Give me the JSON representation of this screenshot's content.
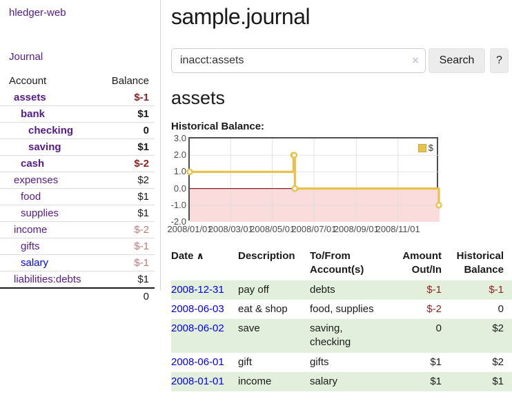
{
  "colors": {
    "purple": "#551a8b",
    "blue": "#0000ee",
    "neg_strong": "#8e1f1f",
    "neg_soft": "#bd7b79",
    "row_green": "#e2efdb",
    "gold": "#e8c24a",
    "chart_negative_bg": "#fbdcdc",
    "chart_zero_line": "#8b1d1d"
  },
  "icons": {
    "sort_ascending": "∧",
    "clear": "×"
  },
  "sidebar": {
    "app_title": "hledger-web",
    "journal_label": "Journal",
    "accounts_table": {
      "account_header": "Account",
      "balance_header": "Balance",
      "rows": [
        {
          "name": "assets",
          "balance": "$-1",
          "depth": 0,
          "bold": true,
          "negative": true
        },
        {
          "name": "bank",
          "balance": "$1",
          "depth": 1,
          "bold": true,
          "negative": false
        },
        {
          "name": "checking",
          "balance": "0",
          "depth": 2,
          "bold": true,
          "negative": false
        },
        {
          "name": "saving",
          "balance": "$1",
          "depth": 2,
          "bold": true,
          "negative": false
        },
        {
          "name": "cash",
          "balance": "$-2",
          "depth": 1,
          "bold": true,
          "negative": true
        },
        {
          "name": "expenses",
          "balance": "$2",
          "depth": 0,
          "bold": false,
          "negative": false
        },
        {
          "name": "food",
          "balance": "$1",
          "depth": 1,
          "bold": false,
          "negative": false
        },
        {
          "name": "supplies",
          "balance": "$1",
          "depth": 1,
          "bold": false,
          "negative": false
        },
        {
          "name": "income",
          "balance": "$-2",
          "depth": 0,
          "bold": false,
          "negative": true
        },
        {
          "name": "gifts",
          "balance": "$-1",
          "depth": 1,
          "bold": false,
          "negative": true
        },
        {
          "name": "salary",
          "balance": "$-1",
          "depth": 1,
          "bold": false,
          "negative": true,
          "unvisited": true
        },
        {
          "name": "liabilities:debts",
          "balance": "$1",
          "depth": 0,
          "bold": false,
          "negative": false
        }
      ],
      "total": "0"
    }
  },
  "header": {
    "title": "sample.journal"
  },
  "search": {
    "value": "inacct:assets",
    "button_label": "Search",
    "help_label": "?"
  },
  "account_page": {
    "heading": "assets",
    "chart_label": "Historical Balance:"
  },
  "chart_data": {
    "type": "line",
    "step": true,
    "series": [
      {
        "name": "$",
        "points": [
          [
            "2008-01-01",
            1
          ],
          [
            "2008-06-01",
            2
          ],
          [
            "2008-06-02",
            2
          ],
          [
            "2008-06-03",
            0
          ],
          [
            "2008-12-31",
            -1
          ]
        ]
      }
    ],
    "x_start": "2008-01-01",
    "x_range_days": 366,
    "xticks": [
      {
        "label": "2008/01/01",
        "day": 0
      },
      {
        "label": "2008/03/01",
        "day": 60
      },
      {
        "label": "2008/05/01",
        "day": 121
      },
      {
        "label": "2008/07/01",
        "day": 182
      },
      {
        "label": "2008/09/01",
        "day": 244
      },
      {
        "label": "2008/11/01",
        "day": 305
      }
    ],
    "yticks": [
      "3.0",
      "2.0",
      "1.0",
      "0.0",
      "-1.0",
      "-2.0"
    ],
    "ylim": [
      -2,
      3
    ],
    "grid": true,
    "legend": {
      "label": "$",
      "position": "top-right"
    },
    "negative_region_shaded": true
  },
  "register_table": {
    "headers": {
      "date": "Date",
      "description": "Description",
      "accounts": "To/From Account(s)",
      "amount": "Amount Out/In",
      "balance": "Historical Balance"
    },
    "rows": [
      {
        "date": "2008-12-31",
        "description": "pay off",
        "accounts": "debts",
        "amount": "$-1",
        "balance": "$-1"
      },
      {
        "date": "2008-06-03",
        "description": "eat & shop",
        "accounts": "food, supplies",
        "amount": "$-2",
        "balance": "0"
      },
      {
        "date": "2008-06-02",
        "description": "save",
        "accounts": "saving, checking",
        "amount": "0",
        "balance": "$2"
      },
      {
        "date": "2008-06-01",
        "description": "gift",
        "accounts": "gifts",
        "amount": "$1",
        "balance": "$2"
      },
      {
        "date": "2008-01-01",
        "description": "income",
        "accounts": "salary",
        "amount": "$1",
        "balance": "$1"
      }
    ]
  }
}
